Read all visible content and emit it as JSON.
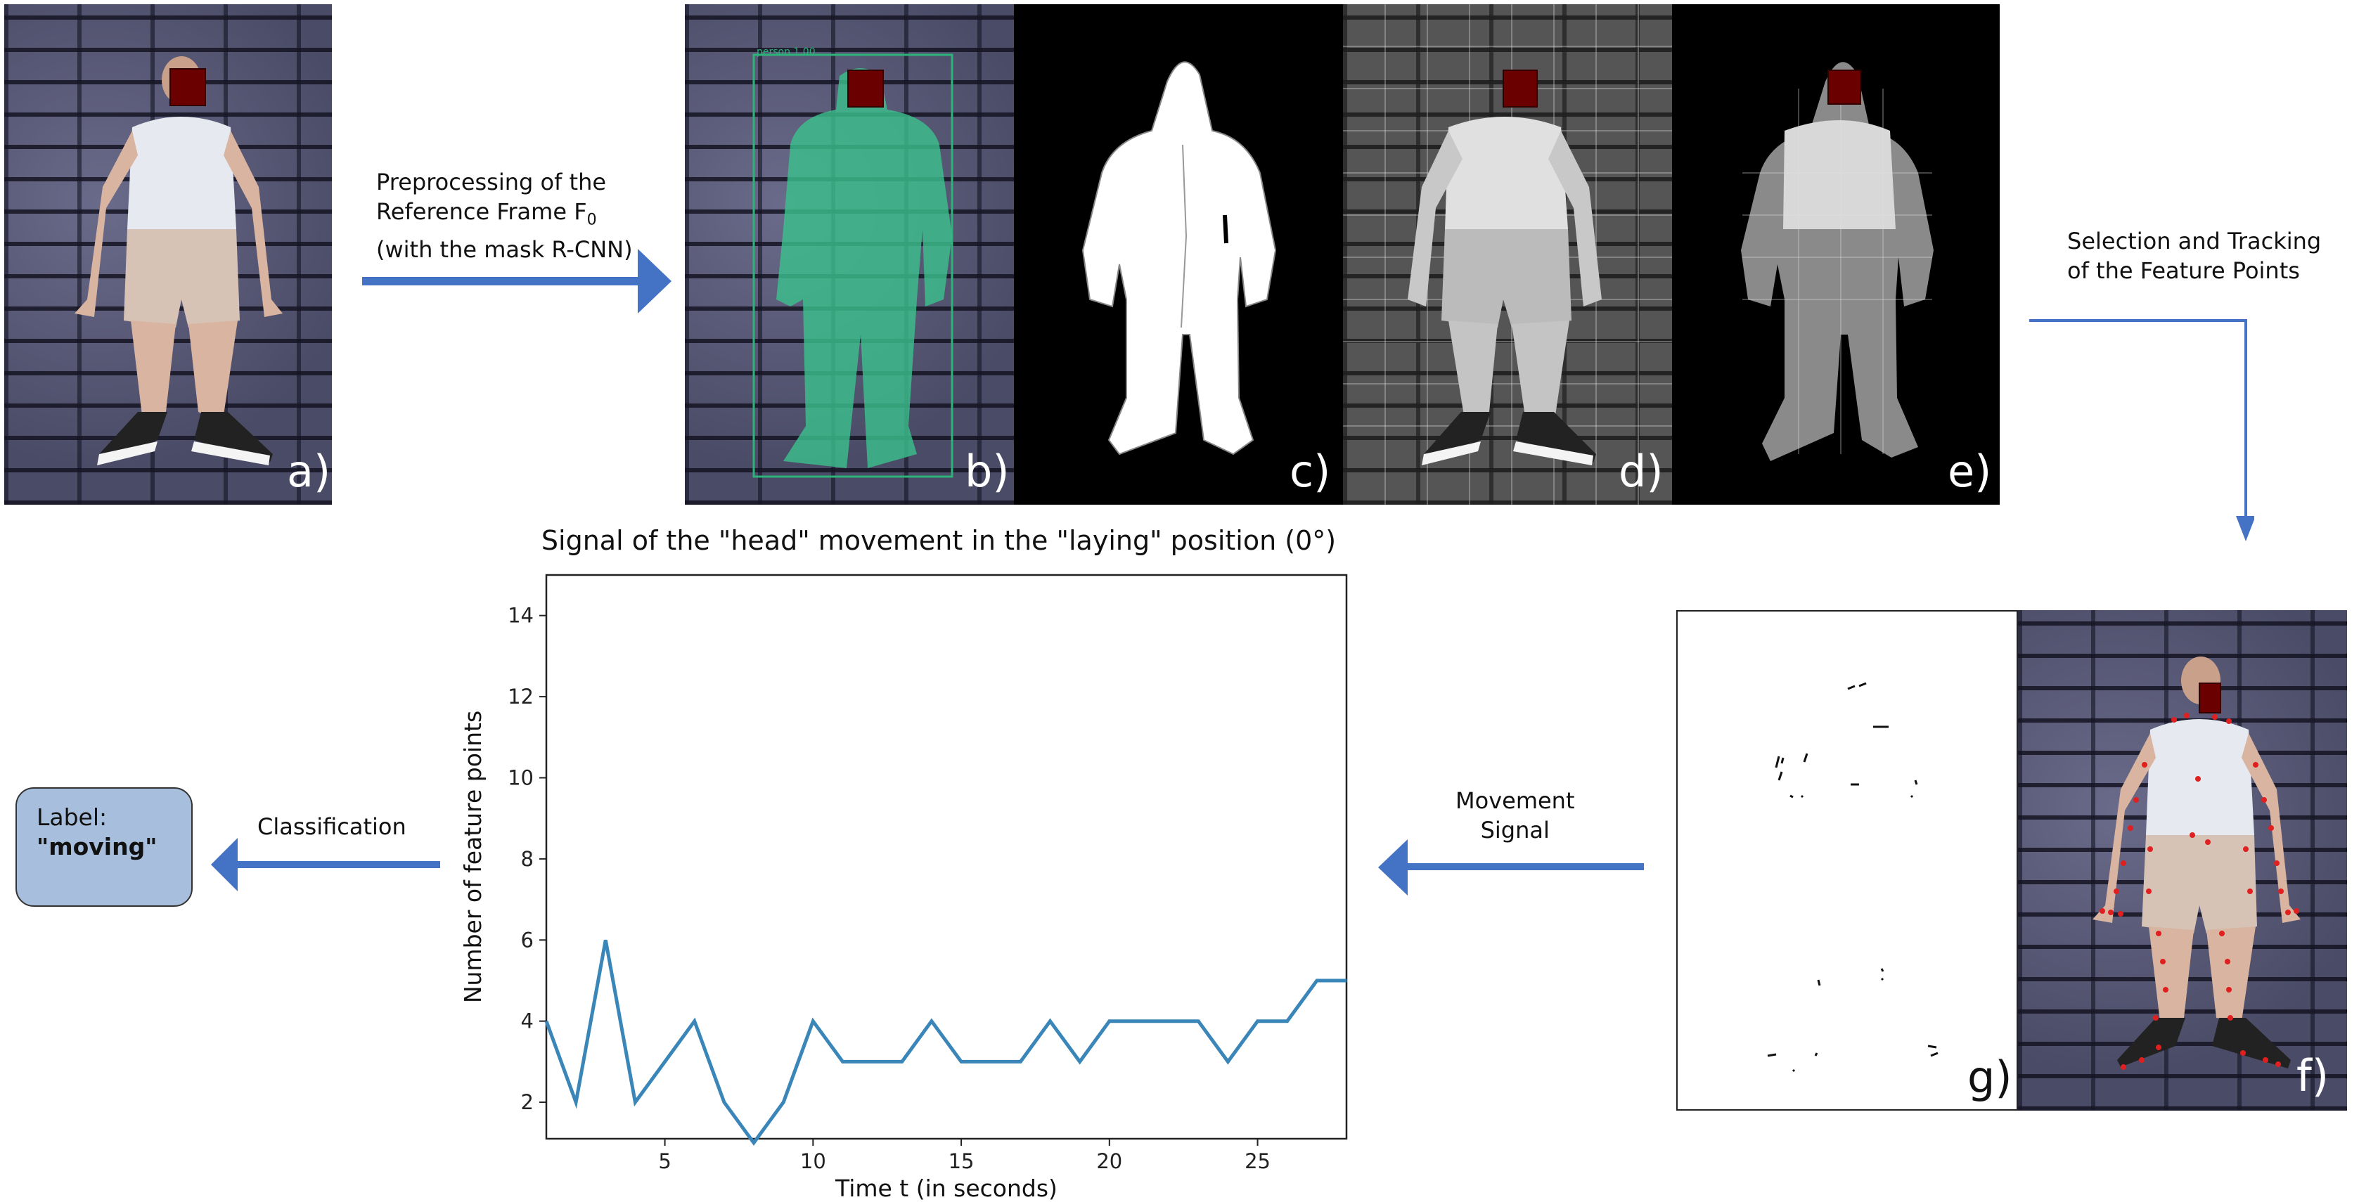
{
  "panels": {
    "a": "a)",
    "b": "b)",
    "c": "c)",
    "d": "d)",
    "e": "e)",
    "f": "f)",
    "g": "g)"
  },
  "captions": {
    "preprocessing_line1": "Preprocessing of the",
    "preprocessing_line2": "Reference Frame F",
    "preprocessing_sub": "0",
    "preprocessing_line3": "(with the mask R-CNN)",
    "selection_line1": "Selection and Tracking",
    "selection_line2": "of the Feature Points",
    "movement_line1": "Movement",
    "movement_line2": "Signal",
    "classification": "Classification"
  },
  "label_box": {
    "prefix": "Label:",
    "value": "\"moving\""
  },
  "detection_label": "person 1.00",
  "colors": {
    "arrow": "#4472c4",
    "series": "#3a86b8",
    "label_box": "#a7bfdc",
    "mask": "#3cc08c",
    "feature_point": "#e02020"
  },
  "chart_data": {
    "type": "line",
    "title": "Signal of the \"head\" movement in the \"laying\" position (0°)",
    "xlabel": "Time t (in seconds)",
    "ylabel": "Number of feature points",
    "xlim": [
      1,
      28
    ],
    "ylim": [
      1.1,
      15
    ],
    "xticks": [
      5,
      10,
      15,
      20,
      25
    ],
    "yticks": [
      2,
      4,
      6,
      8,
      10,
      12,
      14
    ],
    "x": [
      1,
      2,
      3,
      4,
      5,
      6,
      7,
      8,
      9,
      10,
      11,
      12,
      13,
      14,
      15,
      16,
      17,
      18,
      19,
      20,
      21,
      22,
      23,
      24,
      25,
      26,
      27,
      28
    ],
    "values": [
      4,
      2,
      6,
      2,
      3,
      4,
      2,
      1,
      2,
      4,
      3,
      3,
      3,
      4,
      3,
      3,
      3,
      4,
      3,
      4,
      4,
      4,
      4,
      3,
      4,
      4,
      5,
      5
    ]
  }
}
